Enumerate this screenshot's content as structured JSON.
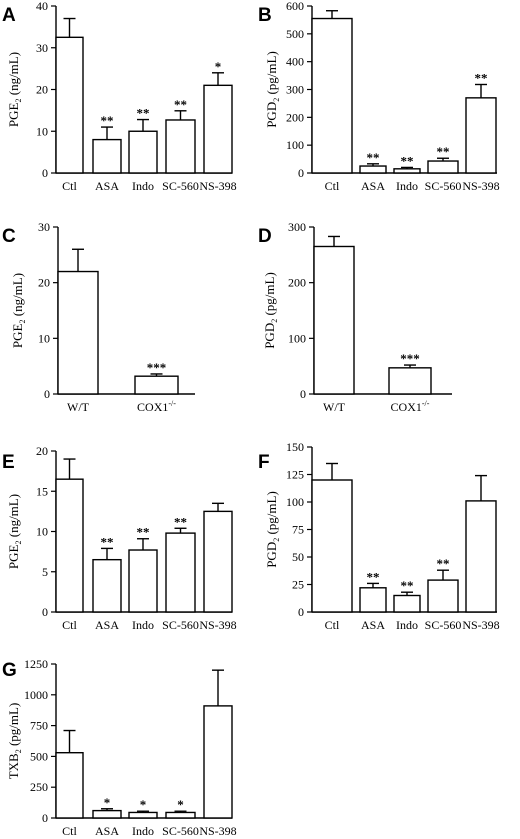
{
  "chart_data": [
    {
      "type": "bar",
      "panel": "A",
      "ylabel": "PGE",
      "ylabel_sub": "2",
      "ylabel_unit": " (ng/mL)",
      "categories": [
        "Ctl",
        "ASA",
        "Indo",
        "SC-560",
        "NS-398"
      ],
      "values": [
        32.5,
        8,
        10,
        12.7,
        21
      ],
      "errors": [
        4.5,
        3,
        2.8,
        2.2,
        3
      ],
      "significance": [
        "",
        "**",
        "**",
        "**",
        "*"
      ],
      "ylim": [
        0,
        40
      ],
      "yticks": [
        0,
        10,
        20,
        30,
        40
      ]
    },
    {
      "type": "bar",
      "panel": "B",
      "ylabel": "PGD",
      "ylabel_sub": "2",
      "ylabel_unit": " (pg/mL)",
      "categories": [
        "Ctl",
        "ASA",
        "Indo",
        "SC-560",
        "NS-398"
      ],
      "values": [
        555,
        25,
        15,
        43,
        270
      ],
      "errors": [
        28,
        8,
        5,
        10,
        48
      ],
      "significance": [
        "",
        "**",
        "**",
        "**",
        "**"
      ],
      "ylim": [
        0,
        600
      ],
      "yticks": [
        0,
        100,
        200,
        300,
        400,
        500,
        600
      ]
    },
    {
      "type": "bar",
      "panel": "C",
      "ylabel": "PGE",
      "ylabel_sub": "2",
      "ylabel_unit": " (ng/mL)",
      "categories": [
        "W/T",
        "COX1"
      ],
      "category_sups": [
        "",
        "-/-"
      ],
      "values": [
        22,
        3.2
      ],
      "errors": [
        4,
        0.4
      ],
      "significance": [
        "",
        "***"
      ],
      "ylim": [
        0,
        30
      ],
      "yticks": [
        0,
        10,
        20,
        30
      ]
    },
    {
      "type": "bar",
      "panel": "D",
      "ylabel": "PGD",
      "ylabel_sub": "2",
      "ylabel_unit": " (pg/mL)",
      "categories": [
        "W/T",
        "COX1"
      ],
      "category_sups": [
        "",
        "-/-"
      ],
      "values": [
        265,
        47
      ],
      "errors": [
        18,
        5
      ],
      "significance": [
        "",
        "***"
      ],
      "ylim": [
        0,
        300
      ],
      "yticks": [
        0,
        100,
        200,
        300
      ]
    },
    {
      "type": "bar",
      "panel": "E",
      "ylabel": "PGE",
      "ylabel_sub": "2",
      "ylabel_unit": " (ng/mL)",
      "categories": [
        "Ctl",
        "ASA",
        "Indo",
        "SC-560",
        "NS-398"
      ],
      "values": [
        16.5,
        6.5,
        7.7,
        9.8,
        12.5
      ],
      "errors": [
        2.5,
        1.4,
        1.4,
        0.6,
        1
      ],
      "significance": [
        "",
        "**",
        "**",
        "**",
        ""
      ],
      "ylim": [
        0,
        20
      ],
      "yticks": [
        0,
        5,
        10,
        15,
        20
      ]
    },
    {
      "type": "bar",
      "panel": "F",
      "ylabel": "PGD",
      "ylabel_sub": "2",
      "ylabel_unit": " (pg/mL)",
      "categories": [
        "Ctl",
        "ASA",
        "Indo",
        "SC-560",
        "NS-398"
      ],
      "values": [
        120,
        22,
        15,
        29,
        101
      ],
      "errors": [
        15,
        4,
        3,
        9,
        23
      ],
      "significance": [
        "",
        "**",
        "**",
        "**",
        ""
      ],
      "ylim": [
        0,
        150
      ],
      "yticks": [
        0,
        25,
        50,
        75,
        100,
        125,
        150
      ]
    },
    {
      "type": "bar",
      "panel": "G",
      "ylabel": "TXB",
      "ylabel_sub": "2",
      "ylabel_unit": " (pg/mL)",
      "categories": [
        "Ctl",
        "ASA",
        "Indo",
        "SC-560",
        "NS-398"
      ],
      "values": [
        530,
        60,
        45,
        45,
        910
      ],
      "errors": [
        180,
        15,
        10,
        10,
        290
      ],
      "significance": [
        "",
        "*",
        "*",
        "*",
        ""
      ],
      "ylim": [
        0,
        1250
      ],
      "yticks": [
        0,
        250,
        500,
        750,
        1000,
        1250
      ]
    }
  ]
}
